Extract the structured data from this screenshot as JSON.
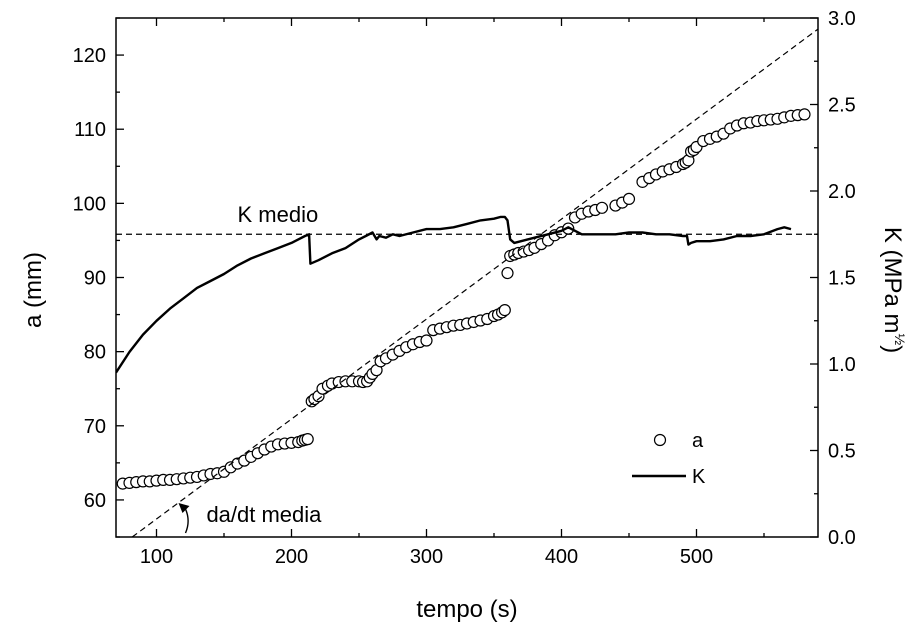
{
  "chart_data": {
    "type": "scatter",
    "xlabel": "tempo (s)",
    "ylabel_left": "a (mm)",
    "ylabel_right": "K (MPa m",
    "ylabel_right_exp": "½",
    "ylabel_right_close": ")",
    "xlim": [
      70,
      590
    ],
    "ylim_left": [
      55,
      125
    ],
    "ylim_right": [
      0.0,
      3.0
    ],
    "x_ticks": [
      100,
      200,
      300,
      400,
      500
    ],
    "y_left_ticks": [
      60,
      70,
      80,
      90,
      100,
      110,
      120
    ],
    "y_right_ticks": [
      "0.0",
      "0.5",
      "1.0",
      "1.5",
      "2.0",
      "2.5",
      "3.0"
    ],
    "grid": false,
    "legend_position": "lower-right",
    "series": [
      {
        "name": "a",
        "kind": "scatter",
        "axis": "left",
        "marker": "open-circle",
        "x": [
          75,
          80,
          85,
          90,
          95,
          100,
          105,
          110,
          115,
          120,
          125,
          130,
          135,
          140,
          145,
          150,
          155,
          160,
          165,
          170,
          175,
          180,
          185,
          190,
          195,
          200,
          205,
          208,
          210,
          212,
          215,
          217,
          220,
          223,
          227,
          230,
          235,
          240,
          245,
          250,
          253,
          256,
          258,
          260,
          263,
          266,
          270,
          275,
          280,
          285,
          290,
          295,
          300,
          305,
          310,
          315,
          320,
          325,
          330,
          335,
          340,
          345,
          350,
          353,
          356,
          358,
          360,
          362,
          365,
          368,
          372,
          376,
          380,
          385,
          390,
          395,
          400,
          405,
          410,
          415,
          420,
          425,
          430,
          440,
          445,
          450,
          460,
          465,
          470,
          475,
          480,
          485,
          490,
          492,
          494,
          496,
          498,
          500,
          505,
          510,
          515,
          520,
          525,
          530,
          535,
          540,
          545,
          550,
          555,
          560,
          565,
          570,
          575,
          580
        ],
        "y": [
          62.2,
          62.3,
          62.4,
          62.5,
          62.5,
          62.6,
          62.7,
          62.7,
          62.8,
          62.9,
          63.0,
          63.1,
          63.3,
          63.5,
          63.6,
          63.8,
          64.4,
          64.9,
          65.3,
          65.8,
          66.3,
          66.8,
          67.2,
          67.5,
          67.6,
          67.7,
          67.8,
          68.0,
          68.1,
          68.2,
          73.3,
          73.6,
          74.0,
          75.0,
          75.4,
          75.7,
          75.9,
          76.0,
          76.0,
          76.0,
          75.9,
          76.0,
          76.5,
          77.0,
          77.5,
          78.7,
          79.1,
          79.6,
          80.1,
          80.6,
          81.0,
          81.3,
          81.5,
          82.9,
          83.1,
          83.3,
          83.5,
          83.6,
          83.8,
          84.0,
          84.2,
          84.4,
          84.8,
          85.0,
          85.3,
          85.6,
          90.6,
          92.9,
          93.1,
          93.3,
          93.5,
          93.7,
          94.0,
          94.5,
          95.0,
          95.7,
          96.1,
          96.6,
          98.1,
          98.6,
          98.9,
          99.1,
          99.4,
          99.7,
          100.1,
          100.6,
          102.9,
          103.4,
          103.9,
          104.3,
          104.6,
          104.9,
          105.3,
          105.5,
          105.8,
          107.0,
          107.2,
          107.6,
          108.4,
          108.7,
          109.0,
          109.4,
          110.1,
          110.5,
          110.8,
          110.9,
          111.1,
          111.2,
          111.3,
          111.4,
          111.6,
          111.8,
          111.9,
          112.0
        ]
      },
      {
        "name": "K",
        "kind": "line",
        "axis": "right",
        "style": "solid",
        "x": [
          70,
          80,
          90,
          100,
          110,
          120,
          130,
          140,
          150,
          160,
          170,
          180,
          190,
          200,
          205,
          210,
          213,
          214,
          220,
          230,
          240,
          250,
          255,
          260,
          263,
          265,
          270,
          275,
          280,
          290,
          300,
          310,
          320,
          330,
          340,
          350,
          355,
          358,
          360,
          362,
          365,
          370,
          380,
          390,
          400,
          405,
          410,
          415,
          420,
          430,
          440,
          450,
          460,
          470,
          480,
          490,
          493,
          494,
          496,
          500,
          510,
          520,
          530,
          540,
          550,
          560,
          565,
          570
        ],
        "y": [
          0.95,
          1.07,
          1.17,
          1.25,
          1.32,
          1.38,
          1.44,
          1.48,
          1.52,
          1.57,
          1.61,
          1.64,
          1.67,
          1.7,
          1.72,
          1.74,
          1.75,
          1.58,
          1.6,
          1.64,
          1.67,
          1.72,
          1.74,
          1.76,
          1.72,
          1.74,
          1.73,
          1.75,
          1.74,
          1.76,
          1.78,
          1.78,
          1.79,
          1.81,
          1.83,
          1.84,
          1.85,
          1.85,
          1.83,
          1.72,
          1.7,
          1.71,
          1.73,
          1.75,
          1.77,
          1.79,
          1.77,
          1.75,
          1.75,
          1.75,
          1.75,
          1.76,
          1.76,
          1.75,
          1.75,
          1.74,
          1.74,
          1.69,
          1.7,
          1.71,
          1.71,
          1.72,
          1.74,
          1.74,
          1.75,
          1.78,
          1.79,
          1.78
        ]
      },
      {
        "name": "K medio",
        "kind": "hline",
        "axis": "right",
        "style": "dashed",
        "y": 1.75,
        "x": [
          70,
          590
        ]
      },
      {
        "name": "da/dt media",
        "kind": "line",
        "axis": "left",
        "style": "dashed",
        "x": [
          82,
          590
        ],
        "y": [
          55.0,
          123.5
        ]
      }
    ],
    "annotations": [
      {
        "text": "K medio",
        "x": 160,
        "y": 97.5,
        "axis": "left"
      },
      {
        "text": "da/dt media",
        "x": 137,
        "y": 57.0,
        "axis": "left"
      }
    ],
    "legend": [
      {
        "label": "a",
        "marker": "open-circle"
      },
      {
        "label": "K",
        "marker": "solid-line"
      }
    ]
  }
}
